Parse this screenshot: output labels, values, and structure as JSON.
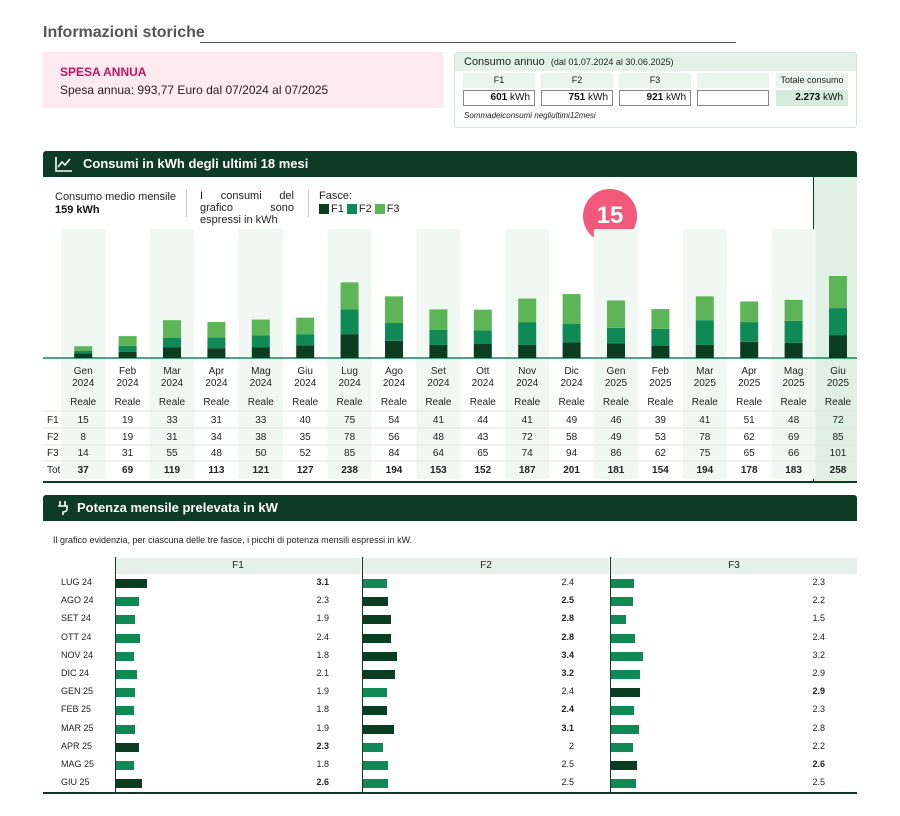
{
  "page": {
    "title": "Informazioni storiche",
    "page_number": "15"
  },
  "spesa": {
    "title": "SPESA ANNUA",
    "text": "Spesa annua: 993,77 Euro dal 07/2024 al 07/2025"
  },
  "consumo_annuo": {
    "title": "Consumo annuo",
    "period": "(dal 01.07.2024 al 30.06.2025)",
    "labels": [
      "F1",
      "F2",
      "F3",
      "",
      "Totale consumo"
    ],
    "values": [
      "601",
      "751",
      "921",
      "",
      "2.273"
    ],
    "unit": "kWh",
    "note": "Sommadeiconsumi negliultimi12mesi"
  },
  "colors": {
    "dark_green": "#0d3b25",
    "f1": "#0a3d22",
    "f2": "#0f8a56",
    "f3": "#5db558",
    "pink": "#c8135b",
    "badge": "#f1587a"
  },
  "consumi": {
    "title": "Consumi in kWh degli ultimi 18 mesi",
    "medio_label": "Consumo medio mensile",
    "medio_value": "159 kWh",
    "note": "I consumi del grafico sono espressi in kWh",
    "fasce_label": "Fasce:",
    "legend": [
      "F1",
      "F2",
      "F3"
    ],
    "row_labels": [
      "F1",
      "F2",
      "F3",
      "Tot"
    ],
    "reale_label": "Reale",
    "months": [
      {
        "m": "Gen",
        "y": "2024"
      },
      {
        "m": "Feb",
        "y": "2024"
      },
      {
        "m": "Mar",
        "y": "2024"
      },
      {
        "m": "Apr",
        "y": "2024"
      },
      {
        "m": "Mag",
        "y": "2024"
      },
      {
        "m": "Giu",
        "y": "2024"
      },
      {
        "m": "Lug",
        "y": "2024"
      },
      {
        "m": "Ago",
        "y": "2024"
      },
      {
        "m": "Set",
        "y": "2024"
      },
      {
        "m": "Ott",
        "y": "2024"
      },
      {
        "m": "Nov",
        "y": "2024"
      },
      {
        "m": "Dic",
        "y": "2024"
      },
      {
        "m": "Gen",
        "y": "2025"
      },
      {
        "m": "Feb",
        "y": "2025"
      },
      {
        "m": "Mar",
        "y": "2025"
      },
      {
        "m": "Apr",
        "y": "2025"
      },
      {
        "m": "Mag",
        "y": "2025"
      },
      {
        "m": "Giu",
        "y": "2025"
      }
    ],
    "f1": [
      15,
      19,
      33,
      31,
      33,
      40,
      75,
      54,
      41,
      44,
      41,
      49,
      46,
      39,
      41,
      51,
      48,
      72
    ],
    "f2": [
      8,
      19,
      31,
      34,
      38,
      35,
      78,
      56,
      48,
      43,
      72,
      58,
      49,
      53,
      78,
      62,
      69,
      85
    ],
    "f3": [
      14,
      31,
      55,
      48,
      50,
      52,
      85,
      84,
      64,
      65,
      74,
      94,
      86,
      62,
      75,
      65,
      66,
      101
    ],
    "tot": [
      37,
      69,
      119,
      113,
      121,
      127,
      238,
      194,
      153,
      152,
      187,
      201,
      181,
      154,
      194,
      178,
      183,
      258
    ]
  },
  "chart_data": [
    {
      "type": "bar",
      "stacked": true,
      "title": "Consumi in kWh degli ultimi 18 mesi",
      "categories": [
        "Gen 2024",
        "Feb 2024",
        "Mar 2024",
        "Apr 2024",
        "Mag 2024",
        "Giu 2024",
        "Lug 2024",
        "Ago 2024",
        "Set 2024",
        "Ott 2024",
        "Nov 2024",
        "Dic 2024",
        "Gen 2025",
        "Feb 2025",
        "Mar 2025",
        "Apr 2025",
        "Mag 2025",
        "Giu 2025"
      ],
      "series": [
        {
          "name": "F1",
          "values": [
            15,
            19,
            33,
            31,
            33,
            40,
            75,
            54,
            41,
            44,
            41,
            49,
            46,
            39,
            41,
            51,
            48,
            72
          ]
        },
        {
          "name": "F2",
          "values": [
            8,
            19,
            31,
            34,
            38,
            35,
            78,
            56,
            48,
            43,
            72,
            58,
            49,
            53,
            78,
            62,
            69,
            85
          ]
        },
        {
          "name": "F3",
          "values": [
            14,
            31,
            55,
            48,
            50,
            52,
            85,
            84,
            64,
            65,
            74,
            94,
            86,
            62,
            75,
            65,
            66,
            101
          ]
        }
      ],
      "legend": "top-left",
      "grid": false
    },
    {
      "type": "bar",
      "orientation": "horizontal",
      "title": "Potenza mensile prelevata in kW",
      "categories": [
        "LUG 24",
        "AGO 24",
        "SET 24",
        "OTT 24",
        "NOV 24",
        "DIC 24",
        "GEN 25",
        "FEB 25",
        "MAR 25",
        "APR 25",
        "MAG 25",
        "GIU 25"
      ],
      "series": [
        {
          "name": "F1",
          "values": [
            3.1,
            2.3,
            1.9,
            2.4,
            1.8,
            2.1,
            1.9,
            1.8,
            1.9,
            2.3,
            1.8,
            2.6
          ]
        },
        {
          "name": "F2",
          "values": [
            2.4,
            2.5,
            2.8,
            2.8,
            3.4,
            3.2,
            2.4,
            2.4,
            3.1,
            2,
            2.5,
            2.5
          ]
        },
        {
          "name": "F3",
          "values": [
            2.3,
            2.2,
            1.5,
            2.4,
            3.2,
            2.9,
            2.9,
            2.3,
            2.8,
            2.2,
            2.6,
            2.5
          ]
        }
      ],
      "grid": false
    }
  ],
  "potenza": {
    "title": "Potenza mensile prelevata in kW",
    "intro": "Il grafico evidenzia, per ciascuna delle tre fasce, i picchi di potenza mensili espressi in kW.",
    "fasce": [
      "F1",
      "F2",
      "F3"
    ],
    "months": [
      "LUG 24",
      "AGO 24",
      "SET 24",
      "OTT 24",
      "NOV 24",
      "DIC 24",
      "GEN 25",
      "FEB 25",
      "MAR 25",
      "APR 25",
      "MAG 25",
      "GIU 25"
    ],
    "f1": [
      "3.1",
      "2.3",
      "1.9",
      "2.4",
      "1.8",
      "2.1",
      "1.9",
      "1.8",
      "1.9",
      "2.3",
      "1.8",
      "2.6"
    ],
    "f2": [
      "2.4",
      "2.5",
      "2.8",
      "2.8",
      "3.4",
      "3.2",
      "2.4",
      "2.4",
      "3.1",
      "2",
      "2.5",
      "2.5"
    ],
    "f3": [
      "2.3",
      "2.2",
      "1.5",
      "2.4",
      "3.2",
      "2.9",
      "2.9",
      "2.3",
      "2.8",
      "2.2",
      "2.6",
      "2.5"
    ],
    "f1_peak_bold": [
      true,
      false,
      false,
      false,
      false,
      false,
      false,
      false,
      false,
      true,
      false,
      true
    ],
    "f2_peak_bold": [
      false,
      true,
      true,
      true,
      true,
      true,
      false,
      true,
      true,
      false,
      false,
      false
    ],
    "f3_peak_bold": [
      false,
      false,
      false,
      false,
      false,
      false,
      true,
      false,
      false,
      false,
      true,
      false
    ],
    "f1_dark": [
      true,
      false,
      false,
      false,
      false,
      false,
      false,
      false,
      false,
      true,
      false,
      true
    ],
    "f2_dark": [
      false,
      true,
      true,
      true,
      true,
      true,
      false,
      true,
      true,
      false,
      false,
      false
    ],
    "f3_dark": [
      false,
      false,
      false,
      false,
      false,
      false,
      true,
      false,
      false,
      false,
      true,
      false
    ]
  }
}
